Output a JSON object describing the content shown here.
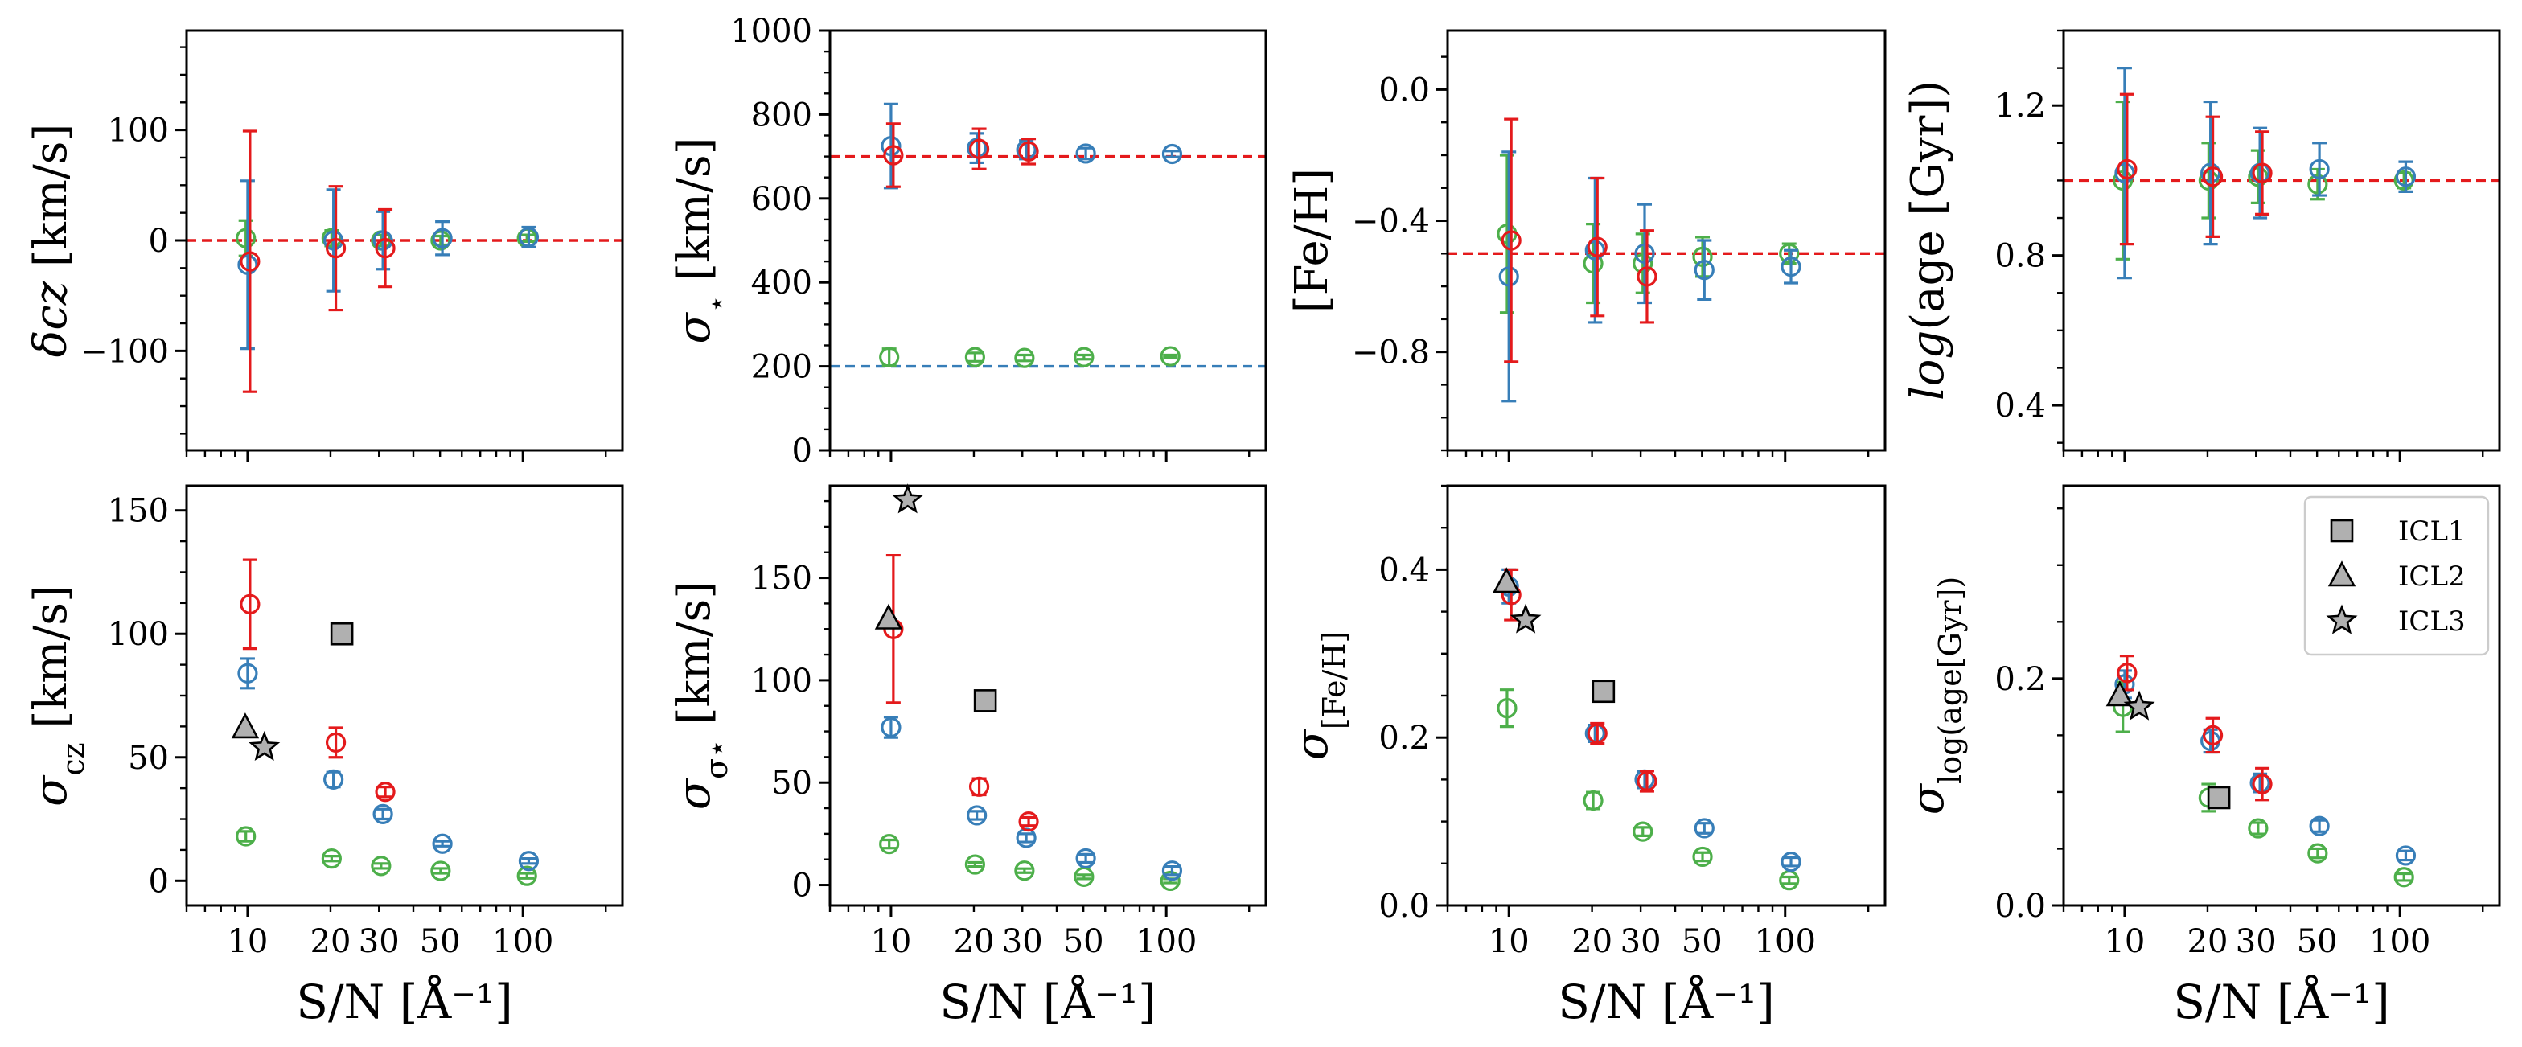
{
  "colors": {
    "red": "#e41a1c",
    "blue": "#377eb8",
    "green": "#4daf4a",
    "ref_marker_fill": "#b0b0b0"
  },
  "chart_data": [
    {
      "type": "scatter",
      "panel": "delta-cz",
      "row": "top",
      "xscale": "log",
      "xlim": [
        6,
        230
      ],
      "xticks": [
        10,
        20,
        30,
        50,
        100
      ],
      "ylabel": "δcz [km/s]",
      "ylim": [
        -190,
        190
      ],
      "yticks": [
        -100,
        0,
        100
      ],
      "yticklabels": [
        "−100",
        "0",
        "100"
      ],
      "ref_lines": [
        {
          "y": 0,
          "color": "red"
        }
      ],
      "series": [
        {
          "name": "red",
          "points": [
            {
              "x": 10,
              "y": -19,
              "err": 118
            },
            {
              "x": 20.5,
              "y": -7,
              "err": 56
            },
            {
              "x": 31,
              "y": -7,
              "err": 35
            }
          ]
        },
        {
          "name": "blue",
          "points": [
            {
              "x": 10,
              "y": -22,
              "err": 76
            },
            {
              "x": 20.5,
              "y": 0,
              "err": 46
            },
            {
              "x": 31,
              "y": 0,
              "err": 26
            },
            {
              "x": 51,
              "y": 2,
              "err": 15
            },
            {
              "x": 105,
              "y": 3,
              "err": 9
            }
          ]
        },
        {
          "name": "green",
          "points": [
            {
              "x": 10,
              "y": 2,
              "err": 16
            },
            {
              "x": 20.5,
              "y": 2,
              "err": 7
            },
            {
              "x": 31,
              "y": 0,
              "err": 5
            },
            {
              "x": 51,
              "y": 0,
              "err": 4
            },
            {
              "x": 105,
              "y": 2,
              "err": 3
            }
          ]
        }
      ]
    },
    {
      "type": "scatter",
      "panel": "sigma-star",
      "row": "top",
      "xscale": "log",
      "xlim": [
        6,
        230
      ],
      "xticks": [
        10,
        20,
        30,
        50,
        100
      ],
      "ylabel": "σ⋆ [km/s]",
      "ylim": [
        0,
        1000
      ],
      "yticks": [
        0,
        200,
        400,
        600,
        800,
        1000
      ],
      "yticklabels": [
        "0",
        "200",
        "400",
        "600",
        "800",
        "1000"
      ],
      "ref_lines": [
        {
          "y": 700,
          "color": "red"
        },
        {
          "y": 200,
          "color": "blue"
        }
      ],
      "series": [
        {
          "name": "red",
          "points": [
            {
              "x": 10,
              "y": 703,
              "err": 75
            },
            {
              "x": 20.5,
              "y": 718,
              "err": 48
            },
            {
              "x": 31,
              "y": 712,
              "err": 30
            }
          ]
        },
        {
          "name": "blue",
          "points": [
            {
              "x": 10,
              "y": 725,
              "err": 100
            },
            {
              "x": 20.5,
              "y": 720,
              "err": 35
            },
            {
              "x": 31,
              "y": 716,
              "err": 22
            },
            {
              "x": 51,
              "y": 707,
              "err": 13
            },
            {
              "x": 105,
              "y": 706,
              "err": 7
            }
          ]
        },
        {
          "name": "green",
          "points": [
            {
              "x": 10,
              "y": 222,
              "err": 20
            },
            {
              "x": 20.5,
              "y": 222,
              "err": 10
            },
            {
              "x": 31,
              "y": 220,
              "err": 7
            },
            {
              "x": 51,
              "y": 222,
              "err": 5
            },
            {
              "x": 105,
              "y": 224,
              "err": 3
            }
          ]
        }
      ]
    },
    {
      "type": "scatter",
      "panel": "fe-h",
      "row": "top",
      "xscale": "log",
      "xlim": [
        6,
        230
      ],
      "xticks": [
        10,
        20,
        30,
        50,
        100
      ],
      "ylabel": "[Fe/H]",
      "ylim": [
        -1.1,
        0.18
      ],
      "yticks": [
        -0.8,
        -0.4,
        0.0
      ],
      "yticklabels": [
        "−0.8",
        "−0.4",
        "0.0"
      ],
      "ref_lines": [
        {
          "y": -0.5,
          "color": "red"
        }
      ],
      "series": [
        {
          "name": "red",
          "points": [
            {
              "x": 10,
              "y": -0.46,
              "err": 0.37
            },
            {
              "x": 20.5,
              "y": -0.48,
              "err": 0.21
            },
            {
              "x": 31,
              "y": -0.57,
              "err": 0.14
            }
          ]
        },
        {
          "name": "blue",
          "points": [
            {
              "x": 10,
              "y": -0.57,
              "err": 0.38
            },
            {
              "x": 20.5,
              "y": -0.49,
              "err": 0.22
            },
            {
              "x": 31,
              "y": -0.5,
              "err": 0.15
            },
            {
              "x": 51,
              "y": -0.55,
              "err": 0.09
            },
            {
              "x": 105,
              "y": -0.54,
              "err": 0.05
            }
          ]
        },
        {
          "name": "green",
          "points": [
            {
              "x": 10,
              "y": -0.44,
              "err": 0.24
            },
            {
              "x": 20.5,
              "y": -0.53,
              "err": 0.12
            },
            {
              "x": 31,
              "y": -0.53,
              "err": 0.09
            },
            {
              "x": 51,
              "y": -0.51,
              "err": 0.06
            },
            {
              "x": 105,
              "y": -0.5,
              "err": 0.03
            }
          ]
        }
      ]
    },
    {
      "type": "scatter",
      "panel": "log-age",
      "row": "top",
      "xscale": "log",
      "xlim": [
        6,
        230
      ],
      "xticks": [
        10,
        20,
        30,
        50,
        100
      ],
      "ylabel": "log(age [Gyr])",
      "ylim": [
        0.28,
        1.4
      ],
      "yticks": [
        0.4,
        0.8,
        1.2
      ],
      "yticklabels": [
        "0.4",
        "0.8",
        "1.2"
      ],
      "ref_lines": [
        {
          "y": 1.0,
          "color": "red"
        }
      ],
      "series": [
        {
          "name": "red",
          "points": [
            {
              "x": 10,
              "y": 1.03,
              "err": 0.2
            },
            {
              "x": 20.5,
              "y": 1.01,
              "err": 0.16
            },
            {
              "x": 31,
              "y": 1.02,
              "err": 0.11
            }
          ]
        },
        {
          "name": "blue",
          "points": [
            {
              "x": 10,
              "y": 1.02,
              "err": 0.28
            },
            {
              "x": 20.5,
              "y": 1.02,
              "err": 0.19
            },
            {
              "x": 31,
              "y": 1.02,
              "err": 0.12
            },
            {
              "x": 51,
              "y": 1.03,
              "err": 0.07
            },
            {
              "x": 105,
              "y": 1.01,
              "err": 0.04
            }
          ]
        },
        {
          "name": "green",
          "points": [
            {
              "x": 10,
              "y": 1.0,
              "err": 0.21
            },
            {
              "x": 20.5,
              "y": 1.0,
              "err": 0.1
            },
            {
              "x": 31,
              "y": 1.01,
              "err": 0.07
            },
            {
              "x": 51,
              "y": 0.99,
              "err": 0.04
            },
            {
              "x": 105,
              "y": 1.0,
              "err": 0.02
            }
          ]
        }
      ]
    },
    {
      "type": "scatter",
      "panel": "sigma-cz",
      "row": "bottom",
      "xscale": "log",
      "xlim": [
        6,
        230
      ],
      "xticks": [
        10,
        20,
        30,
        50,
        100
      ],
      "xticklabels": [
        "10",
        "20",
        "30",
        "50",
        "100"
      ],
      "xlabel": "S/N [Å⁻¹]",
      "ylabel": "σcz [km/s]",
      "ylim": [
        -10,
        160
      ],
      "yticks": [
        0,
        50,
        100,
        150
      ],
      "yticklabels": [
        "0",
        "50",
        "100",
        "150"
      ],
      "series": [
        {
          "name": "red",
          "points": [
            {
              "x": 10,
              "y": 112,
              "err": 18
            },
            {
              "x": 20.5,
              "y": 56,
              "err": 6
            },
            {
              "x": 31,
              "y": 36,
              "err": 2
            }
          ]
        },
        {
          "name": "blue",
          "points": [
            {
              "x": 10,
              "y": 84,
              "err": 6
            },
            {
              "x": 20.5,
              "y": 41,
              "err": 3
            },
            {
              "x": 31,
              "y": 27,
              "err": 2
            },
            {
              "x": 51,
              "y": 15,
              "err": 1
            },
            {
              "x": 105,
              "y": 8,
              "err": 1
            }
          ]
        },
        {
          "name": "green",
          "points": [
            {
              "x": 10,
              "y": 18,
              "err": 2
            },
            {
              "x": 20.5,
              "y": 9,
              "err": 1
            },
            {
              "x": 31,
              "y": 6,
              "err": 1
            },
            {
              "x": 51,
              "y": 4,
              "err": 1
            },
            {
              "x": 105,
              "y": 2,
              "err": 1
            }
          ]
        }
      ],
      "references": [
        {
          "name": "ICL1",
          "marker": "square",
          "x": 22,
          "y": 100
        },
        {
          "name": "ICL2",
          "marker": "triangle",
          "x": 9.8,
          "y": 62
        },
        {
          "name": "ICL3",
          "marker": "star",
          "x": 11.5,
          "y": 54
        }
      ]
    },
    {
      "type": "scatter",
      "panel": "sigma-sigma-star",
      "row": "bottom",
      "xscale": "log",
      "xlim": [
        6,
        230
      ],
      "xticks": [
        10,
        20,
        30,
        50,
        100
      ],
      "xticklabels": [
        "10",
        "20",
        "30",
        "50",
        "100"
      ],
      "xlabel": "S/N [Å⁻¹]",
      "ylabel": "σσ⋆ [km/s]",
      "ylim": [
        -10,
        195
      ],
      "yticks": [
        0,
        50,
        100,
        150
      ],
      "yticklabels": [
        "0",
        "50",
        "100",
        "150"
      ],
      "series": [
        {
          "name": "red",
          "points": [
            {
              "x": 10,
              "y": 125,
              "err": 36
            },
            {
              "x": 20.5,
              "y": 48,
              "err": 4
            },
            {
              "x": 31,
              "y": 31,
              "err": 2
            }
          ]
        },
        {
          "name": "blue",
          "points": [
            {
              "x": 10,
              "y": 77,
              "err": 5
            },
            {
              "x": 20.5,
              "y": 34,
              "err": 2
            },
            {
              "x": 31,
              "y": 23,
              "err": 2
            },
            {
              "x": 51,
              "y": 13,
              "err": 2
            },
            {
              "x": 105,
              "y": 7,
              "err": 2
            }
          ]
        },
        {
          "name": "green",
          "points": [
            {
              "x": 10,
              "y": 20,
              "err": 2
            },
            {
              "x": 20.5,
              "y": 10,
              "err": 1
            },
            {
              "x": 31,
              "y": 7,
              "err": 1
            },
            {
              "x": 51,
              "y": 4,
              "err": 1
            },
            {
              "x": 105,
              "y": 2,
              "err": 1
            }
          ]
        }
      ],
      "references": [
        {
          "name": "ICL1",
          "marker": "square",
          "x": 22,
          "y": 90
        },
        {
          "name": "ICL2",
          "marker": "triangle",
          "x": 9.8,
          "y": 130
        },
        {
          "name": "ICL3",
          "marker": "star",
          "x": 11.5,
          "y": 188
        }
      ]
    },
    {
      "type": "scatter",
      "panel": "sigma-fe-h",
      "row": "bottom",
      "xscale": "log",
      "xlim": [
        6,
        230
      ],
      "xticks": [
        10,
        20,
        30,
        50,
        100
      ],
      "xticklabels": [
        "10",
        "20",
        "30",
        "50",
        "100"
      ],
      "xlabel": "S/N [Å⁻¹]",
      "ylabel": "σ[Fe/H]",
      "ylim": [
        0,
        0.5
      ],
      "yticks": [
        0.0,
        0.2,
        0.4
      ],
      "yticklabels": [
        "0.0",
        "0.2",
        "0.4"
      ],
      "series": [
        {
          "name": "red",
          "points": [
            {
              "x": 10,
              "y": 0.37,
              "err": 0.03
            },
            {
              "x": 20.5,
              "y": 0.205,
              "err": 0.012
            },
            {
              "x": 31,
              "y": 0.148,
              "err": 0.012
            }
          ]
        },
        {
          "name": "blue",
          "points": [
            {
              "x": 10,
              "y": 0.38,
              "err": 0.02
            },
            {
              "x": 20.5,
              "y": 0.205,
              "err": 0.01
            },
            {
              "x": 31,
              "y": 0.15,
              "err": 0.01
            },
            {
              "x": 51,
              "y": 0.092,
              "err": 0.006
            },
            {
              "x": 105,
              "y": 0.052,
              "err": 0.005
            }
          ]
        },
        {
          "name": "green",
          "points": [
            {
              "x": 10,
              "y": 0.235,
              "err": 0.022
            },
            {
              "x": 20.5,
              "y": 0.125,
              "err": 0.01
            },
            {
              "x": 31,
              "y": 0.088,
              "err": 0.005
            },
            {
              "x": 51,
              "y": 0.058,
              "err": 0.005
            },
            {
              "x": 105,
              "y": 0.03,
              "err": 0.004
            }
          ]
        }
      ],
      "references": [
        {
          "name": "ICL1",
          "marker": "square",
          "x": 22,
          "y": 0.255
        },
        {
          "name": "ICL2",
          "marker": "triangle",
          "x": 9.8,
          "y": 0.385
        },
        {
          "name": "ICL3",
          "marker": "star",
          "x": 11.5,
          "y": 0.34
        }
      ]
    },
    {
      "type": "scatter",
      "panel": "sigma-log-age",
      "row": "bottom",
      "xscale": "log",
      "xlim": [
        6,
        230
      ],
      "xticks": [
        10,
        20,
        30,
        50,
        100
      ],
      "xticklabels": [
        "10",
        "20",
        "30",
        "50",
        "100"
      ],
      "xlabel": "S/N [Å⁻¹]",
      "ylabel": "σlog(age[Gyr])",
      "ylim": [
        0,
        0.37
      ],
      "yticks": [
        0.0,
        0.2
      ],
      "yticklabels": [
        "0.0",
        "0.2"
      ],
      "series": [
        {
          "name": "red",
          "points": [
            {
              "x": 10,
              "y": 0.205,
              "err": 0.015
            },
            {
              "x": 20.5,
              "y": 0.15,
              "err": 0.015
            },
            {
              "x": 31,
              "y": 0.107,
              "err": 0.014
            }
          ]
        },
        {
          "name": "blue",
          "points": [
            {
              "x": 10,
              "y": 0.195,
              "err": 0.012
            },
            {
              "x": 20.5,
              "y": 0.145,
              "err": 0.01
            },
            {
              "x": 31,
              "y": 0.108,
              "err": 0.008
            },
            {
              "x": 51,
              "y": 0.07,
              "err": 0.005
            },
            {
              "x": 105,
              "y": 0.044,
              "err": 0.004
            }
          ]
        },
        {
          "name": "green",
          "points": [
            {
              "x": 10,
              "y": 0.175,
              "err": 0.022
            },
            {
              "x": 20.5,
              "y": 0.095,
              "err": 0.012
            },
            {
              "x": 31,
              "y": 0.068,
              "err": 0.005
            },
            {
              "x": 51,
              "y": 0.046,
              "err": 0.004
            },
            {
              "x": 105,
              "y": 0.025,
              "err": 0.003
            }
          ]
        }
      ],
      "references": [
        {
          "name": "ICL1",
          "marker": "square",
          "x": 22,
          "y": 0.095
        },
        {
          "name": "ICL2",
          "marker": "triangle",
          "x": 9.6,
          "y": 0.185
        },
        {
          "name": "ICL3",
          "marker": "star",
          "x": 11.3,
          "y": 0.175
        }
      ],
      "legend": {
        "position": "top-right",
        "entries": [
          "ICL1",
          "ICL2",
          "ICL3"
        ]
      }
    }
  ]
}
